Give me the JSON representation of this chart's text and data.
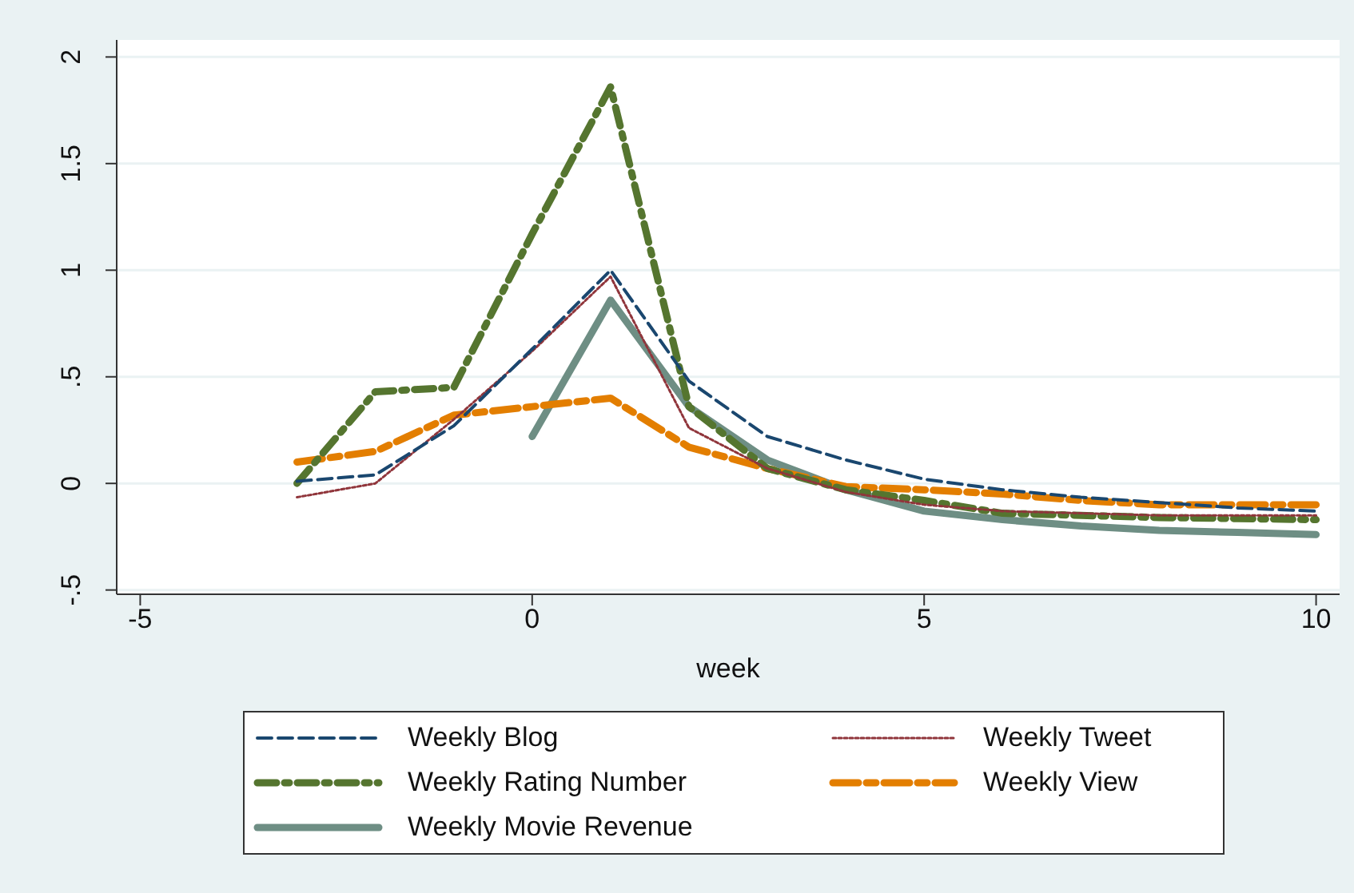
{
  "chart_data": {
    "type": "line",
    "xlabel": "week",
    "x": [
      -3,
      -2,
      -1,
      0,
      1,
      2,
      3,
      4,
      5,
      6,
      7,
      8,
      9,
      10
    ],
    "xlim": [
      -5.3,
      10.3
    ],
    "xticks": [
      -5,
      0,
      5,
      10
    ],
    "ylim": [
      -0.52,
      2.08
    ],
    "yticks": [
      {
        "value": -0.5,
        "label": "-.5"
      },
      0,
      {
        "value": 0.5,
        "label": ".5"
      },
      1,
      1.5,
      2
    ],
    "grid": "y",
    "legend": "bottom",
    "marker": "none",
    "series": [
      {
        "name": "Weekly Blog",
        "color": "#1a476f",
        "line_style": "dashed",
        "values": [
          0.01,
          0.04,
          0.27,
          0.63,
          1.0,
          0.48,
          0.22,
          0.11,
          0.02,
          -0.03,
          -0.065,
          -0.09,
          -0.115,
          -0.13
        ]
      },
      {
        "name": "Weekly Tweet",
        "color": "#90353b",
        "line_style": "dotted",
        "values": [
          -0.065,
          0.0,
          0.3,
          0.62,
          0.97,
          0.26,
          0.07,
          -0.04,
          -0.1,
          -0.13,
          -0.14,
          -0.15,
          -0.15,
          -0.15
        ]
      },
      {
        "name": "Weekly Rating Number",
        "color": "#55752f",
        "line_style": "dashed",
        "values": [
          0.0,
          0.43,
          0.45,
          1.17,
          1.86,
          0.36,
          0.07,
          -0.03,
          -0.08,
          -0.14,
          -0.15,
          -0.16,
          -0.165,
          -0.17
        ]
      },
      {
        "name": "Weekly View",
        "color": "#e37e00",
        "line_style": "dashed",
        "values": [
          0.1,
          0.15,
          0.32,
          0.36,
          0.4,
          0.17,
          0.07,
          -0.015,
          -0.03,
          -0.05,
          -0.08,
          -0.1,
          -0.1,
          -0.1
        ]
      },
      {
        "name": "Weekly Movie Revenue",
        "color": "#6e8e84",
        "line_style": "solid",
        "values": [
          null,
          null,
          null,
          0.22,
          0.86,
          0.36,
          0.11,
          -0.03,
          -0.13,
          -0.17,
          -0.2,
          -0.22,
          -0.23,
          -0.24
        ]
      }
    ]
  }
}
